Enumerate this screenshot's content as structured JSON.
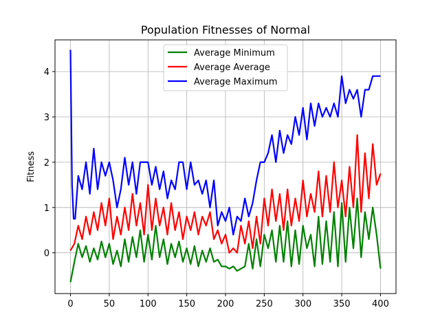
{
  "chart_data": {
    "type": "line",
    "title": "Population Fitnesses of Normal",
    "xlabel": "",
    "ylabel": "Fitness",
    "xlim": [
      -20,
      420
    ],
    "ylim": [
      -0.9,
      4.7
    ],
    "x_ticks": [
      0,
      50,
      100,
      150,
      200,
      250,
      300,
      350,
      400
    ],
    "y_ticks": [
      0,
      1,
      2,
      3,
      4
    ],
    "grid": true,
    "legend_position": "top-center",
    "series": [
      {
        "name": "Average Minimum",
        "color": "#008000",
        "x": [
          0,
          5,
          10,
          15,
          20,
          25,
          30,
          35,
          40,
          45,
          50,
          55,
          60,
          65,
          70,
          75,
          80,
          85,
          90,
          95,
          100,
          105,
          110,
          115,
          120,
          125,
          130,
          135,
          140,
          145,
          150,
          155,
          160,
          165,
          170,
          175,
          180,
          185,
          190,
          195,
          200,
          205,
          210,
          215,
          220,
          225,
          230,
          235,
          240,
          245,
          250,
          255,
          260,
          265,
          270,
          275,
          280,
          285,
          290,
          295,
          300,
          305,
          310,
          315,
          320,
          325,
          330,
          335,
          340,
          345,
          350,
          355,
          360,
          365,
          370,
          375,
          380,
          385,
          390,
          395,
          400
        ],
        "values": [
          -0.65,
          -0.2,
          0.2,
          -0.1,
          0.15,
          -0.2,
          0.1,
          -0.15,
          0.25,
          -0.1,
          0.2,
          -0.25,
          0.05,
          -0.3,
          0.3,
          -0.2,
          0.35,
          -0.1,
          0.5,
          -0.2,
          0.4,
          -0.15,
          0.6,
          -0.1,
          0.3,
          -0.25,
          0.2,
          -0.1,
          0.25,
          -0.2,
          0.1,
          -0.25,
          0.15,
          -0.3,
          0.05,
          -0.2,
          0.1,
          -0.2,
          -0.15,
          -0.3,
          -0.3,
          -0.35,
          -0.3,
          -0.4,
          -0.35,
          -0.3,
          0.2,
          -0.35,
          0.3,
          -0.3,
          0.4,
          0.1,
          0.5,
          -0.2,
          0.6,
          -0.2,
          0.7,
          -0.3,
          0.5,
          -0.25,
          0.6,
          0.1,
          0.4,
          -0.3,
          0.8,
          -0.25,
          0.7,
          -0.2,
          0.9,
          -0.3,
          1.1,
          -0.2,
          1.0,
          0.1,
          1.2,
          -0.1,
          0.9,
          0.3,
          1.0,
          0.4,
          -0.35
        ]
      },
      {
        "name": "Average Average",
        "color": "#ff0000",
        "x": [
          0,
          5,
          10,
          15,
          20,
          25,
          30,
          35,
          40,
          45,
          50,
          55,
          60,
          65,
          70,
          75,
          80,
          85,
          90,
          95,
          100,
          105,
          110,
          115,
          120,
          125,
          130,
          135,
          140,
          145,
          150,
          155,
          160,
          165,
          170,
          175,
          180,
          185,
          190,
          195,
          200,
          205,
          210,
          215,
          220,
          225,
          230,
          235,
          240,
          245,
          250,
          255,
          260,
          265,
          270,
          275,
          280,
          285,
          290,
          295,
          300,
          305,
          310,
          315,
          320,
          325,
          330,
          335,
          340,
          345,
          350,
          355,
          360,
          365,
          370,
          375,
          380,
          385,
          390,
          395,
          400
        ],
        "values": [
          0.05,
          0.2,
          0.6,
          0.3,
          0.8,
          0.4,
          0.9,
          0.5,
          1.1,
          0.6,
          1.2,
          0.3,
          0.8,
          0.4,
          1.0,
          0.5,
          1.3,
          0.6,
          1.1,
          0.4,
          1.5,
          0.5,
          1.2,
          0.6,
          1.0,
          0.4,
          1.1,
          0.5,
          0.9,
          0.3,
          0.8,
          0.5,
          0.9,
          0.4,
          0.8,
          0.6,
          0.9,
          0.3,
          0.5,
          0.2,
          0.4,
          0.0,
          0.1,
          0.0,
          0.6,
          0.2,
          0.7,
          0.1,
          0.8,
          0.2,
          1.2,
          0.6,
          1.4,
          0.7,
          1.3,
          0.5,
          1.4,
          0.6,
          1.2,
          0.7,
          1.6,
          0.8,
          1.3,
          0.9,
          1.8,
          0.8,
          1.7,
          0.9,
          2.0,
          1.0,
          1.6,
          0.8,
          1.9,
          1.0,
          2.6,
          0.9,
          2.2,
          1.2,
          2.4,
          1.5,
          1.75
        ]
      },
      {
        "name": "Average Maximum",
        "color": "#0000ff",
        "x": [
          0,
          2,
          4,
          6,
          10,
          15,
          20,
          25,
          30,
          35,
          40,
          45,
          50,
          55,
          60,
          65,
          70,
          75,
          80,
          85,
          90,
          95,
          100,
          105,
          110,
          115,
          120,
          125,
          130,
          135,
          140,
          145,
          150,
          155,
          160,
          165,
          170,
          175,
          180,
          185,
          190,
          195,
          200,
          205,
          210,
          215,
          220,
          225,
          230,
          235,
          240,
          245,
          250,
          255,
          260,
          265,
          270,
          275,
          280,
          285,
          290,
          295,
          300,
          305,
          310,
          315,
          320,
          325,
          330,
          335,
          340,
          345,
          350,
          355,
          360,
          365,
          370,
          375,
          380,
          385,
          390,
          395,
          400
        ],
        "values": [
          4.48,
          1.5,
          0.75,
          0.75,
          1.7,
          1.4,
          2.0,
          1.3,
          2.3,
          1.4,
          2.0,
          1.7,
          2.0,
          1.6,
          1.0,
          1.4,
          2.1,
          1.5,
          2.0,
          1.3,
          2.0,
          2.0,
          2.0,
          1.5,
          1.9,
          1.4,
          1.8,
          1.2,
          1.6,
          1.4,
          2.0,
          2.0,
          1.4,
          2.0,
          1.5,
          1.6,
          1.3,
          1.6,
          1.0,
          1.6,
          0.6,
          0.9,
          0.7,
          1.0,
          0.4,
          0.8,
          0.7,
          1.2,
          0.8,
          1.1,
          1.6,
          2.0,
          2.0,
          2.2,
          2.6,
          2.0,
          2.7,
          2.2,
          2.6,
          2.4,
          3.0,
          2.6,
          3.2,
          2.5,
          3.3,
          2.8,
          3.3,
          3.0,
          3.2,
          3.0,
          3.3,
          3.0,
          3.9,
          3.3,
          3.6,
          3.4,
          3.6,
          3.0,
          3.6,
          3.6,
          3.9,
          3.9,
          3.9
        ]
      }
    ]
  }
}
